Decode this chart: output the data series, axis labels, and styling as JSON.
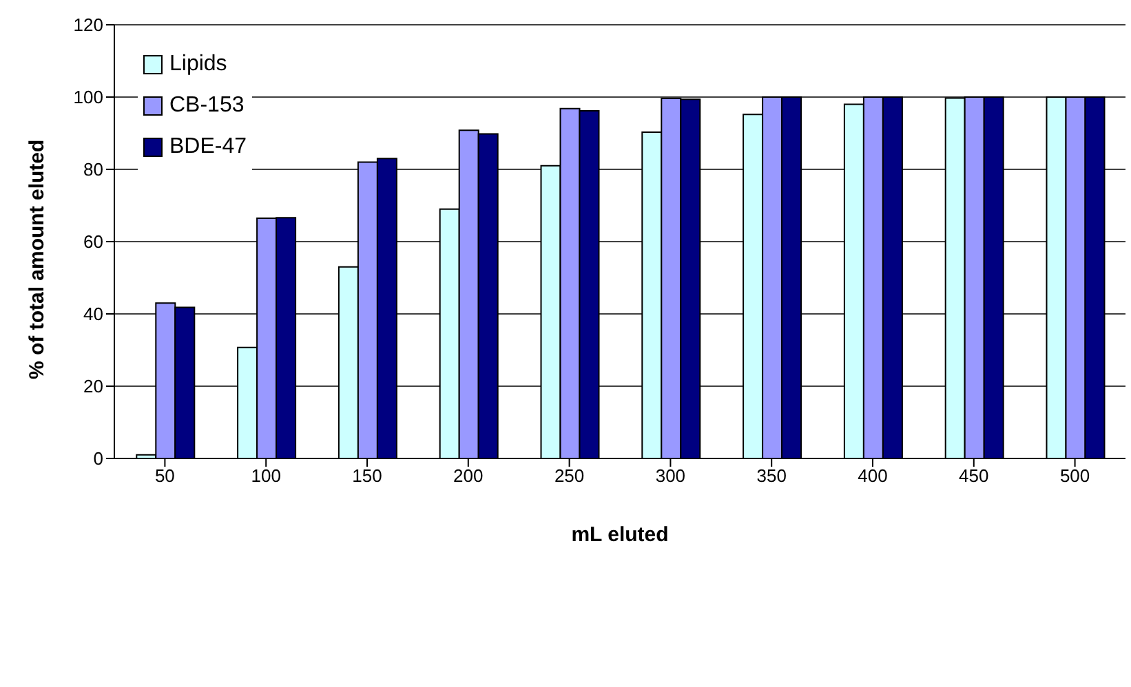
{
  "chart_data": {
    "type": "bar",
    "xlabel": "mL eluted",
    "ylabel": "% of total amount eluted",
    "categories": [
      "50",
      "100",
      "150",
      "200",
      "250",
      "300",
      "350",
      "400",
      "450",
      "500"
    ],
    "series": [
      {
        "name": "Lipids",
        "color": "#ccffff",
        "values": [
          1,
          30.7,
          53,
          69,
          81,
          90.3,
          95.2,
          98,
          99.7,
          100
        ]
      },
      {
        "name": "CB-153",
        "color": "#9999ff",
        "values": [
          43,
          66.5,
          82,
          90.8,
          96.8,
          99.6,
          100,
          100,
          100,
          100
        ]
      },
      {
        "name": "BDE-47",
        "color": "#000080",
        "values": [
          41.8,
          66.6,
          83,
          89.8,
          96.2,
          99.4,
          100,
          100,
          100,
          100
        ]
      }
    ],
    "ylim": [
      0,
      120
    ],
    "yticks": [
      0,
      20,
      40,
      60,
      80,
      100,
      120
    ],
    "grid": "y",
    "legend": "top left"
  }
}
